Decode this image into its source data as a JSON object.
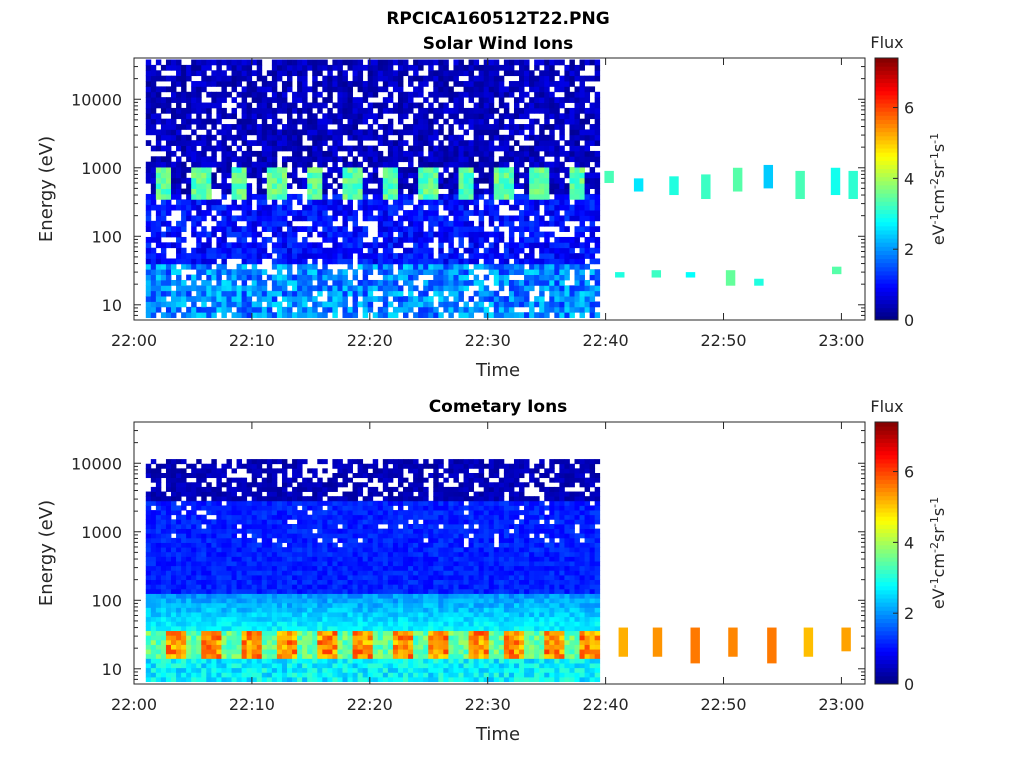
{
  "figure_title": "RPCICA160512T22.PNG",
  "colorbar": {
    "label": "Flux",
    "units_html": "eV-1cm-2sr-1s-1",
    "unit_parts": [
      "eV",
      "-1",
      "cm",
      "-2",
      "sr",
      "-1",
      "s",
      "-1"
    ],
    "ticks": [
      "0",
      "2",
      "4",
      "6"
    ],
    "range": [
      0,
      7.4
    ],
    "colormap": "jet"
  },
  "chart_data": [
    {
      "type": "heatmap",
      "title": "Solar Wind Ions",
      "xlabel": "Time",
      "ylabel": "Energy (eV)",
      "x_ticks": [
        "22:00",
        "22:10",
        "22:20",
        "22:30",
        "22:40",
        "22:50",
        "23:00"
      ],
      "y_ticks": [
        "10",
        "100",
        "1000",
        "10000"
      ],
      "y_scale": "log",
      "ylim": [
        6,
        40000
      ],
      "xlim_minutes": [
        0,
        62
      ],
      "data_end_dense_minutes": 39.5,
      "band_energy_ev": [
        380,
        1000
      ],
      "band_flux_typical": 3.4,
      "low_energy_flux_typical": 2.0,
      "high_energy_flux_typical": 0.6,
      "sparse_blocks": [
        {
          "t": 40.3,
          "e_lo": 600,
          "e_hi": 900,
          "flux": 3.3
        },
        {
          "t": 42.8,
          "e_lo": 450,
          "e_hi": 700,
          "flux": 2.6
        },
        {
          "t": 45.8,
          "e_lo": 400,
          "e_hi": 750,
          "flux": 3.0
        },
        {
          "t": 48.5,
          "e_lo": 350,
          "e_hi": 800,
          "flux": 3.2
        },
        {
          "t": 51.2,
          "e_lo": 450,
          "e_hi": 1000,
          "flux": 3.4
        },
        {
          "t": 53.8,
          "e_lo": 500,
          "e_hi": 1100,
          "flux": 2.4
        },
        {
          "t": 56.5,
          "e_lo": 350,
          "e_hi": 900,
          "flux": 3.3
        },
        {
          "t": 59.5,
          "e_lo": 400,
          "e_hi": 1000,
          "flux": 2.9
        },
        {
          "t": 61.0,
          "e_lo": 350,
          "e_hi": 900,
          "flux": 3.1
        },
        {
          "t": 41.2,
          "e_lo": 25,
          "e_hi": 30,
          "flux": 3.0
        },
        {
          "t": 44.3,
          "e_lo": 25,
          "e_hi": 32,
          "flux": 3.2
        },
        {
          "t": 47.2,
          "e_lo": 25,
          "e_hi": 30,
          "flux": 2.8
        },
        {
          "t": 50.6,
          "e_lo": 19,
          "e_hi": 32,
          "flux": 3.5
        },
        {
          "t": 53.0,
          "e_lo": 19,
          "e_hi": 24,
          "flux": 3.0
        },
        {
          "t": 59.6,
          "e_lo": 28,
          "e_hi": 36,
          "flux": 3.4
        }
      ]
    },
    {
      "type": "heatmap",
      "title": "Cometary Ions",
      "xlabel": "Time",
      "ylabel": "Energy (eV)",
      "x_ticks": [
        "22:00",
        "22:10",
        "22:20",
        "22:30",
        "22:40",
        "22:50",
        "23:00"
      ],
      "y_ticks": [
        "10",
        "100",
        "1000",
        "10000"
      ],
      "y_scale": "log",
      "ylim": [
        6,
        40000
      ],
      "xlim_minutes": [
        0,
        62
      ],
      "data_end_dense_minutes": 39.5,
      "peak_energy_ev": [
        15,
        35
      ],
      "peak_flux_typical": 5.6,
      "high_energy_flux_typical": 0.6,
      "sparse_blocks": [
        {
          "t": 41.5,
          "e_lo": 15,
          "e_hi": 40,
          "flux": 5.2
        },
        {
          "t": 44.4,
          "e_lo": 15,
          "e_hi": 40,
          "flux": 5.4
        },
        {
          "t": 47.6,
          "e_lo": 12,
          "e_hi": 40,
          "flux": 5.6
        },
        {
          "t": 50.8,
          "e_lo": 15,
          "e_hi": 40,
          "flux": 5.5
        },
        {
          "t": 54.1,
          "e_lo": 12,
          "e_hi": 40,
          "flux": 5.6
        },
        {
          "t": 57.2,
          "e_lo": 15,
          "e_hi": 40,
          "flux": 5.1
        },
        {
          "t": 60.4,
          "e_lo": 18,
          "e_hi": 40,
          "flux": 5.3
        }
      ]
    }
  ]
}
